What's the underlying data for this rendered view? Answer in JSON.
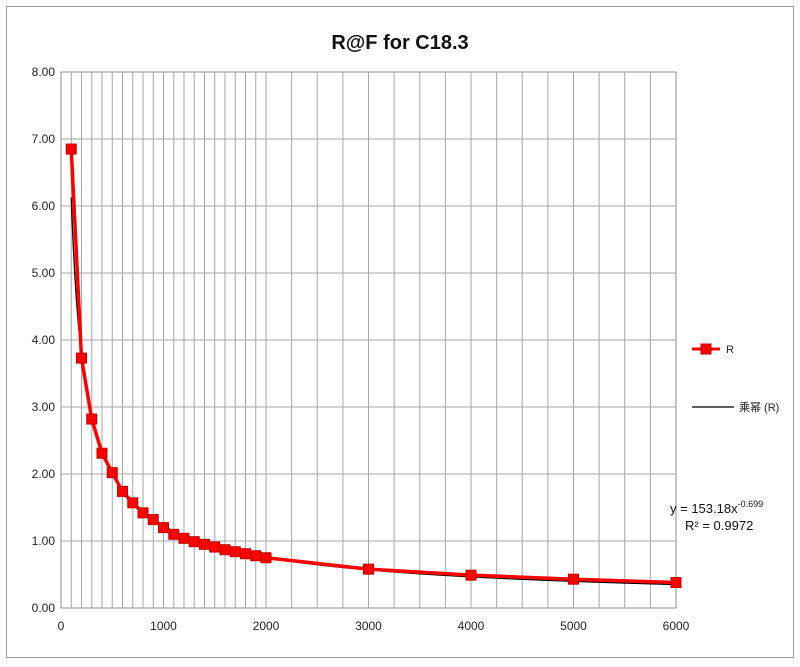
{
  "chart_data": {
    "type": "scatter",
    "title": "R@F  for C18.3",
    "xlabel": "",
    "ylabel": "",
    "xlim": [
      0,
      6000
    ],
    "ylim": [
      0,
      8
    ],
    "x_ticks": [
      "0",
      "1000",
      "2000",
      "3000",
      "4000",
      "5000",
      "6000"
    ],
    "y_ticks": [
      "0.00",
      "1.00",
      "2.00",
      "3.00",
      "4.00",
      "5.00",
      "6.00",
      "7.00",
      "8.00"
    ],
    "grid": true,
    "legend_position": "right",
    "series": [
      {
        "name": "R",
        "color": "#ff0000",
        "marker": "square",
        "x": [
          100,
          200,
          300,
          400,
          500,
          600,
          700,
          800,
          900,
          1000,
          1100,
          1200,
          1300,
          1400,
          1500,
          1600,
          1700,
          1800,
          1900,
          2000,
          3000,
          4000,
          5000,
          6000
        ],
        "y": [
          6.85,
          3.73,
          2.82,
          2.31,
          2.02,
          1.74,
          1.57,
          1.42,
          1.32,
          1.2,
          1.1,
          1.04,
          0.99,
          0.95,
          0.91,
          0.87,
          0.84,
          0.81,
          0.78,
          0.75,
          0.58,
          0.49,
          0.43,
          0.38
        ]
      },
      {
        "name": "乘幂 (R)",
        "color": "#000000",
        "type": "trendline",
        "model": "power",
        "a": 153.18,
        "b": -0.699
      }
    ],
    "annotation": {
      "equation_prefix": "y = 153.18x",
      "equation_exponent": "-0.699",
      "r_squared": "R² = 0.9972"
    }
  }
}
